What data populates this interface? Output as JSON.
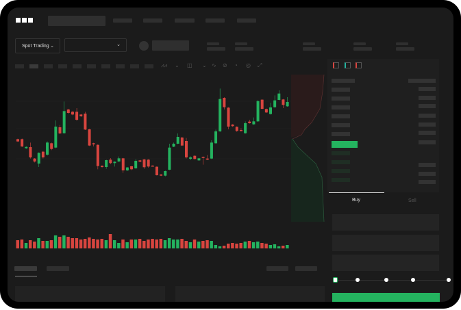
{
  "brand": {
    "logo": "OKX"
  },
  "header": {
    "trade_type": "Spot Trading",
    "pair_select": "",
    "chevron_icon": "chevron-down-icon"
  },
  "orderbook": {
    "icons": [
      "orderbook-both-icon",
      "orderbook-bids-icon",
      "orderbook-asks-icon"
    ],
    "mid_color": "#24b35f"
  },
  "order_form": {
    "buy_tab": "Buy",
    "sell_tab": "Sell",
    "leverage_slider": {
      "value_fraction": 0
    }
  },
  "colors": {
    "up": "#24b35f",
    "down": "#d8453f",
    "background": "#1b1b1b"
  },
  "chart_data": {
    "type": "candlestick",
    "candles": [
      [
        200,
        202,
        188,
        190
      ],
      [
        200,
        203,
        165,
        168
      ],
      [
        160,
        168,
        158,
        166
      ],
      [
        165,
        185,
        115,
        120
      ],
      [
        115,
        117,
        98,
        102
      ],
      [
        93,
        142,
        78,
        140
      ],
      [
        145,
        148,
        115,
        120
      ],
      [
        132,
        190,
        128,
        185
      ],
      [
        182,
        185,
        152,
        157
      ],
      [
        163,
        282,
        160,
        255
      ],
      [
        252,
        262,
        222,
        225
      ],
      [
        226,
        365,
        224,
        323
      ],
      [
        330,
        333,
        312,
        315
      ],
      [
        320,
        323,
        305,
        308
      ],
      [
        320,
        336,
        280,
        285
      ],
      [
        308,
        310,
        298,
        300
      ],
      [
        312,
        320,
        240,
        242
      ],
      [
        243,
        245,
        170,
        172
      ],
      [
        182,
        184,
        168,
        177
      ],
      [
        175,
        177,
        68,
        82
      ],
      [
        83,
        85,
        74,
        78
      ],
      [
        78,
        110,
        70,
        108
      ],
      [
        110,
        117,
        90,
        95
      ],
      [
        95,
        103,
        80,
        101
      ],
      [
        102,
        124,
        100,
        116
      ],
      [
        116,
        118,
        52,
        63
      ],
      [
        63,
        78,
        60,
        76
      ],
      [
        81,
        83,
        64,
        68
      ],
      [
        72,
        112,
        70,
        105
      ],
      [
        107,
        109,
        99,
        101
      ],
      [
        111,
        113,
        70,
        77
      ],
      [
        110,
        112,
        75,
        80
      ],
      [
        84,
        85,
        80,
        81
      ],
      [
        79,
        81,
        40,
        42
      ],
      [
        45,
        47,
        38,
        40
      ],
      [
        40,
        62,
        37,
        60
      ],
      [
        66,
        180,
        64,
        163
      ],
      [
        167,
        185,
        165,
        180
      ],
      [
        180,
        225,
        178,
        210
      ],
      [
        207,
        210,
        170,
        172
      ],
      [
        192,
        205,
        115,
        120
      ],
      [
        114,
        125,
        108,
        120
      ],
      [
        127,
        129,
        111,
        113
      ],
      [
        107,
        118,
        105,
        116
      ],
      [
        122,
        124,
        88,
        119
      ],
      [
        115,
        130,
        108,
        110
      ],
      [
        115,
        195,
        113,
        185
      ],
      [
        182,
        242,
        180,
        234
      ],
      [
        234,
        422,
        232,
        376
      ],
      [
        381,
        384,
        330,
        340
      ],
      [
        338,
        340,
        243,
        255
      ],
      [
        264,
        266,
        254,
        257
      ],
      [
        254,
        256,
        232,
        236
      ],
      [
        240,
        248,
        234,
        236
      ],
      [
        226,
        278,
        224,
        270
      ],
      [
        277,
        285,
        268,
        270
      ],
      [
        265,
        295,
        263,
        278
      ],
      [
        278,
        370,
        276,
        367
      ],
      [
        373,
        375,
        330,
        333
      ],
      [
        332,
        334,
        315,
        317
      ],
      [
        310,
        360,
        308,
        339
      ],
      [
        340,
        392,
        338,
        370
      ],
      [
        372,
        414,
        370,
        400
      ],
      [
        374,
        376,
        336,
        350
      ],
      [
        344,
        384,
        342,
        363
      ]
    ],
    "volume": [
      12,
      13,
      8,
      12,
      10,
      15,
      11,
      11,
      12,
      19,
      17,
      19,
      17,
      15,
      15,
      13,
      14,
      16,
      14,
      13,
      14,
      12,
      21,
      12,
      8,
      13,
      9,
      13,
      13,
      14,
      11,
      13,
      14,
      13,
      14,
      12,
      15,
      13,
      13,
      14,
      11,
      9,
      13,
      10,
      11,
      12,
      11,
      5,
      3,
      4,
      7,
      8,
      7,
      8,
      10,
      11,
      9,
      10,
      8,
      7,
      5,
      6,
      3,
      4,
      5
    ],
    "grid": true
  }
}
